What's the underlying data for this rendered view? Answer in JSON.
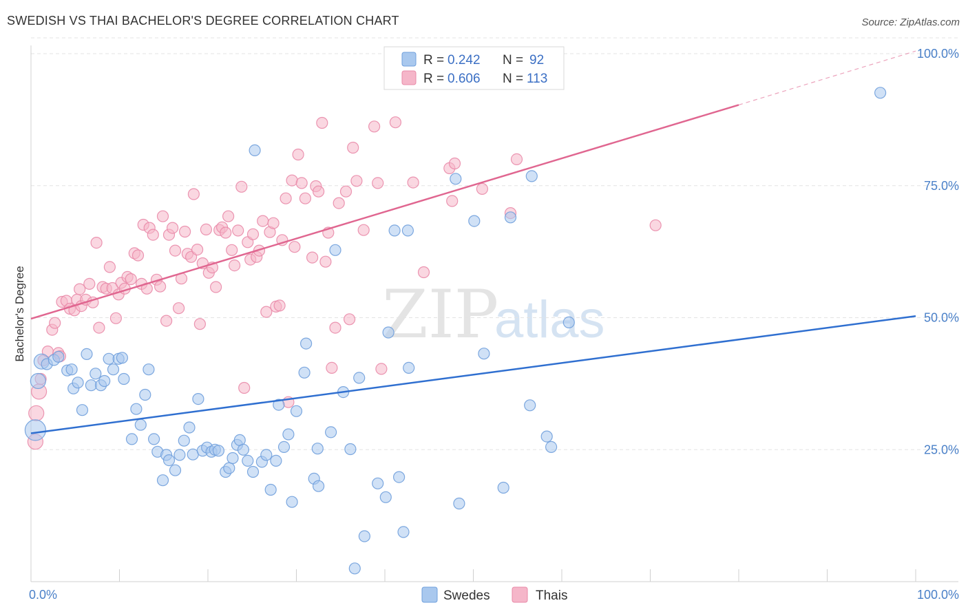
{
  "header": {
    "title": "SWEDISH VS THAI BACHELOR'S DEGREE CORRELATION CHART",
    "source": "Source: ZipAtlas.com"
  },
  "watermark": {
    "zip": "ZIP",
    "atlas": "atlas"
  },
  "legend": {
    "r_label": "R =",
    "n_label": "N =",
    "rows": [
      {
        "series": "Swedes",
        "r": "0.242",
        "n": "92"
      },
      {
        "series": "Thais",
        "r": "0.606",
        "n": "113"
      }
    ]
  },
  "bottom_legend": [
    "Swedes",
    "Thais"
  ],
  "colors": {
    "swedes_fill": "#a9c8ee",
    "swedes_stroke": "#6f9fdc",
    "swedes_line": "#2f6fd0",
    "thais_fill": "#f5b6c9",
    "thais_stroke": "#e98aa8",
    "thais_line": "#e06690"
  },
  "chart_data": {
    "type": "scatter",
    "title": "SWEDISH VS THAI BACHELOR'S DEGREE CORRELATION CHART",
    "xlabel": "",
    "ylabel": "Bachelor's Degree",
    "xlim": [
      0,
      100
    ],
    "ylim": [
      0,
      103
    ],
    "x_tick_labels": [
      "0.0%",
      "100.0%"
    ],
    "y_ticks": [
      25,
      50,
      75,
      100
    ],
    "y_tick_labels": [
      "25.0%",
      "50.0%",
      "75.0%",
      "100.0%"
    ],
    "grid": true,
    "legend_position": "top-center",
    "series": [
      {
        "name": "Swedes",
        "r": 0.242,
        "n": 92,
        "trend": {
          "x": [
            0,
            100
          ],
          "y": [
            28.1,
            50.3
          ]
        },
        "points": [
          [
            0.5,
            28.7,
            3
          ],
          [
            0.8,
            38.0,
            2
          ],
          [
            1.2,
            41.7,
            2
          ],
          [
            1.8,
            41.2,
            1
          ],
          [
            2.6,
            42.0,
            1
          ],
          [
            3.1,
            42.6,
            1
          ],
          [
            4.1,
            40.0,
            1
          ],
          [
            4.6,
            40.2,
            1
          ],
          [
            4.8,
            36.6,
            1
          ],
          [
            5.3,
            37.7,
            1
          ],
          [
            5.8,
            32.5,
            1
          ],
          [
            6.3,
            43.1,
            1
          ],
          [
            6.8,
            37.2,
            1
          ],
          [
            7.3,
            39.4,
            1
          ],
          [
            7.9,
            37.2,
            1
          ],
          [
            8.3,
            38.0,
            1
          ],
          [
            8.8,
            42.2,
            1
          ],
          [
            9.3,
            40.2,
            1
          ],
          [
            9.9,
            42.2,
            1
          ],
          [
            10.3,
            42.4,
            1
          ],
          [
            10.5,
            38.4,
            1
          ],
          [
            11.4,
            27.0,
            1
          ],
          [
            11.9,
            32.7,
            1
          ],
          [
            12.4,
            29.7,
            1
          ],
          [
            12.9,
            35.4,
            1
          ],
          [
            13.3,
            40.2,
            1
          ],
          [
            13.9,
            27.0,
            1
          ],
          [
            14.3,
            24.6,
            1
          ],
          [
            14.9,
            19.2,
            1
          ],
          [
            15.3,
            24.0,
            1
          ],
          [
            15.6,
            23.0,
            1
          ],
          [
            16.3,
            21.1,
            1
          ],
          [
            16.8,
            24.0,
            1
          ],
          [
            17.3,
            26.7,
            1
          ],
          [
            17.9,
            29.2,
            1
          ],
          [
            18.3,
            24.1,
            1
          ],
          [
            18.9,
            34.6,
            1
          ],
          [
            19.4,
            24.8,
            1
          ],
          [
            19.9,
            25.4,
            1
          ],
          [
            20.4,
            24.6,
            1
          ],
          [
            20.8,
            25.0,
            1
          ],
          [
            21.2,
            24.8,
            1
          ],
          [
            22.0,
            20.8,
            1
          ],
          [
            22.4,
            21.5,
            1
          ],
          [
            22.8,
            23.4,
            1
          ],
          [
            23.3,
            25.9,
            1
          ],
          [
            23.6,
            26.8,
            1
          ],
          [
            24.0,
            25.0,
            1
          ],
          [
            24.5,
            22.9,
            1
          ],
          [
            25.1,
            20.8,
            1
          ],
          [
            25.3,
            81.7,
            1
          ],
          [
            26.1,
            22.7,
            1
          ],
          [
            26.6,
            24.0,
            1
          ],
          [
            27.1,
            17.4,
            1
          ],
          [
            27.7,
            22.9,
            1
          ],
          [
            28.0,
            33.5,
            1
          ],
          [
            28.6,
            25.5,
            1
          ],
          [
            29.1,
            27.9,
            1
          ],
          [
            29.5,
            15.1,
            1
          ],
          [
            30.0,
            32.3,
            1
          ],
          [
            30.9,
            39.6,
            1
          ],
          [
            31.1,
            45.1,
            1
          ],
          [
            32.0,
            19.5,
            1
          ],
          [
            32.4,
            25.2,
            1
          ],
          [
            32.5,
            18.1,
            1
          ],
          [
            33.9,
            28.3,
            1
          ],
          [
            34.4,
            62.8,
            1
          ],
          [
            35.3,
            35.9,
            1
          ],
          [
            36.1,
            25.1,
            1
          ],
          [
            36.6,
            2.5,
            1
          ],
          [
            37.1,
            38.6,
            1
          ],
          [
            37.7,
            8.6,
            1
          ],
          [
            39.2,
            18.6,
            1
          ],
          [
            40.1,
            16.0,
            1
          ],
          [
            40.4,
            47.2,
            1
          ],
          [
            41.1,
            66.5,
            1
          ],
          [
            41.6,
            19.8,
            1
          ],
          [
            42.1,
            9.4,
            1
          ],
          [
            42.6,
            66.5,
            1
          ],
          [
            42.7,
            40.5,
            1
          ],
          [
            48.0,
            76.3,
            1
          ],
          [
            48.4,
            14.8,
            1
          ],
          [
            50.1,
            68.3,
            1
          ],
          [
            51.2,
            43.2,
            1
          ],
          [
            53.4,
            17.8,
            1
          ],
          [
            54.2,
            69.0,
            1
          ],
          [
            56.4,
            33.4,
            1
          ],
          [
            56.6,
            76.8,
            1
          ],
          [
            58.3,
            27.5,
            1
          ],
          [
            58.8,
            25.5,
            1
          ],
          [
            60.8,
            49.1,
            1
          ],
          [
            96.0,
            92.6,
            1
          ]
        ]
      },
      {
        "name": "Thais",
        "r": 0.606,
        "n": 113,
        "trend": {
          "x": [
            0,
            80
          ],
          "y": [
            49.8,
            90.3
          ]
        },
        "trend_dashed": {
          "x": [
            80,
            100
          ],
          "y": [
            90.3,
            100.5
          ]
        },
        "points": [
          [
            0.5,
            26.5,
            2
          ],
          [
            0.6,
            31.9,
            2
          ],
          [
            0.9,
            36.0,
            2
          ],
          [
            1.1,
            38.4,
            1
          ],
          [
            1.4,
            41.9,
            1
          ],
          [
            1.9,
            43.6,
            1
          ],
          [
            2.4,
            47.7,
            1
          ],
          [
            2.7,
            49.0,
            1
          ],
          [
            3.1,
            43.3,
            1
          ],
          [
            3.3,
            42.7,
            1
          ],
          [
            3.5,
            53.0,
            1
          ],
          [
            4.0,
            53.2,
            1
          ],
          [
            4.4,
            51.7,
            1
          ],
          [
            4.9,
            51.4,
            1
          ],
          [
            5.2,
            53.4,
            1
          ],
          [
            5.5,
            55.4,
            1
          ],
          [
            5.7,
            52.2,
            1
          ],
          [
            6.2,
            53.4,
            1
          ],
          [
            6.6,
            56.4,
            1
          ],
          [
            7.0,
            52.9,
            1
          ],
          [
            7.4,
            64.2,
            1
          ],
          [
            7.7,
            48.1,
            1
          ],
          [
            8.1,
            55.8,
            1
          ],
          [
            8.5,
            55.5,
            1
          ],
          [
            8.9,
            59.6,
            1
          ],
          [
            9.2,
            55.6,
            1
          ],
          [
            9.6,
            49.9,
            1
          ],
          [
            9.9,
            54.4,
            1
          ],
          [
            10.2,
            56.6,
            1
          ],
          [
            10.6,
            55.5,
            1
          ],
          [
            10.9,
            57.7,
            1
          ],
          [
            11.3,
            57.3,
            1
          ],
          [
            11.7,
            62.2,
            1
          ],
          [
            12.1,
            61.8,
            1
          ],
          [
            12.5,
            56.4,
            1
          ],
          [
            12.7,
            67.6,
            1
          ],
          [
            13.1,
            55.5,
            1
          ],
          [
            13.4,
            67.0,
            1
          ],
          [
            13.8,
            65.7,
            1
          ],
          [
            14.2,
            57.2,
            1
          ],
          [
            14.6,
            55.9,
            1
          ],
          [
            14.9,
            69.2,
            1
          ],
          [
            15.3,
            49.4,
            1
          ],
          [
            15.6,
            65.7,
            1
          ],
          [
            16.0,
            67.0,
            1
          ],
          [
            16.3,
            62.7,
            1
          ],
          [
            16.7,
            51.8,
            1
          ],
          [
            17.0,
            57.4,
            1
          ],
          [
            17.4,
            66.3,
            1
          ],
          [
            17.7,
            62.1,
            1
          ],
          [
            18.1,
            61.5,
            1
          ],
          [
            18.4,
            73.4,
            1
          ],
          [
            18.8,
            62.9,
            1
          ],
          [
            19.1,
            48.8,
            1
          ],
          [
            19.4,
            60.3,
            1
          ],
          [
            19.8,
            66.7,
            1
          ],
          [
            20.1,
            58.5,
            1
          ],
          [
            20.5,
            59.5,
            1
          ],
          [
            20.9,
            55.8,
            1
          ],
          [
            21.3,
            66.6,
            1
          ],
          [
            21.6,
            67.1,
            1
          ],
          [
            22.0,
            66.1,
            1
          ],
          [
            22.3,
            69.2,
            1
          ],
          [
            22.7,
            62.8,
            1
          ],
          [
            23.0,
            59.9,
            1
          ],
          [
            23.4,
            66.5,
            1
          ],
          [
            23.8,
            74.8,
            1
          ],
          [
            24.1,
            36.7,
            1
          ],
          [
            24.5,
            64.3,
            1
          ],
          [
            24.8,
            61.0,
            1
          ],
          [
            25.1,
            65.8,
            1
          ],
          [
            25.5,
            61.5,
            1
          ],
          [
            25.8,
            62.7,
            1
          ],
          [
            26.2,
            68.3,
            1
          ],
          [
            26.6,
            51.1,
            1
          ],
          [
            27.0,
            66.2,
            1
          ],
          [
            27.4,
            67.9,
            1
          ],
          [
            27.7,
            52.1,
            1
          ],
          [
            28.1,
            52.3,
            1
          ],
          [
            28.4,
            64.7,
            1
          ],
          [
            28.8,
            72.6,
            1
          ],
          [
            29.1,
            34.0,
            1
          ],
          [
            29.5,
            76.0,
            1
          ],
          [
            29.8,
            63.4,
            1
          ],
          [
            30.2,
            80.9,
            1
          ],
          [
            30.6,
            75.5,
            1
          ],
          [
            31.0,
            72.6,
            1
          ],
          [
            31.8,
            61.4,
            1
          ],
          [
            32.2,
            74.9,
            1
          ],
          [
            32.5,
            73.9,
            1
          ],
          [
            32.9,
            86.9,
            1
          ],
          [
            33.3,
            60.6,
            1
          ],
          [
            33.6,
            66.1,
            1
          ],
          [
            34.0,
            40.5,
            1
          ],
          [
            34.4,
            48.1,
            1
          ],
          [
            34.8,
            71.7,
            1
          ],
          [
            35.6,
            73.9,
            1
          ],
          [
            36.0,
            49.7,
            1
          ],
          [
            36.4,
            82.2,
            1
          ],
          [
            36.8,
            75.9,
            1
          ],
          [
            37.6,
            66.6,
            1
          ],
          [
            38.8,
            86.2,
            1
          ],
          [
            39.2,
            75.5,
            1
          ],
          [
            39.6,
            40.3,
            1
          ],
          [
            41.2,
            87.0,
            1
          ],
          [
            43.2,
            75.6,
            1
          ],
          [
            44.4,
            58.6,
            1
          ],
          [
            47.3,
            78.3,
            1
          ],
          [
            47.6,
            72.1,
            1
          ],
          [
            47.9,
            79.2,
            1
          ],
          [
            51.0,
            74.4,
            1
          ],
          [
            54.2,
            69.8,
            1
          ],
          [
            54.9,
            80.0,
            1
          ],
          [
            70.6,
            67.5,
            1
          ]
        ]
      }
    ]
  }
}
